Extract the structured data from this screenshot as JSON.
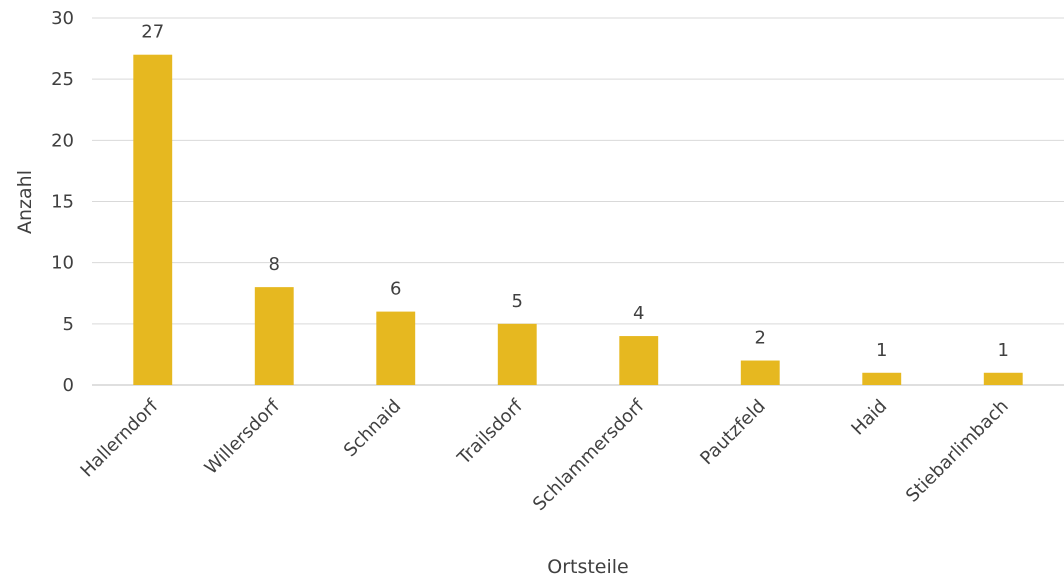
{
  "chart_data": {
    "type": "bar",
    "categories": [
      "Hallerndorf",
      "Willersdorf",
      "Schnaid",
      "Trailsdorf",
      "Schlammersdorf",
      "Pautzfeld",
      "Haid",
      "Stiebarlimbach"
    ],
    "values": [
      27,
      8,
      6,
      5,
      4,
      2,
      1,
      1
    ],
    "xlabel": "Ortsteile",
    "ylabel": "Anzahl",
    "ylim": [
      0,
      30
    ],
    "yticks": [
      0,
      5,
      10,
      15,
      20,
      25,
      30
    ],
    "grid": true,
    "bar_color": "#E6B820"
  }
}
